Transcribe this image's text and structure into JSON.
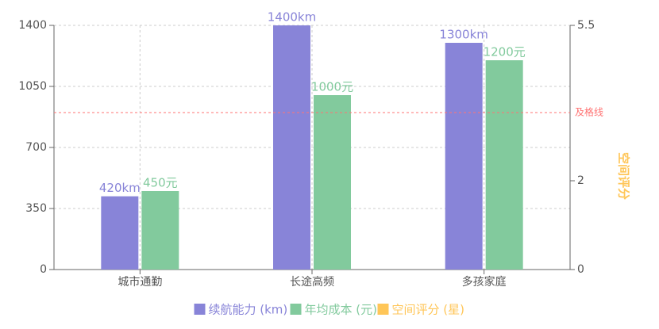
{
  "chart_data": {
    "type": "bar",
    "categories": [
      "城市通勤",
      "长途高频",
      "多孩家庭"
    ],
    "series": [
      {
        "name": "续航能力 (km)",
        "color": "#8884d8",
        "values": [
          420,
          1400,
          1300
        ],
        "value_labels": [
          "420km",
          "1400km",
          "1300km"
        ]
      },
      {
        "name": "年均成本 (元)",
        "color": "#82ca9d",
        "values": [
          450,
          1000,
          1200
        ],
        "value_labels": [
          "450元",
          "1000元",
          "1200元"
        ]
      },
      {
        "name": "空间评分 (星)",
        "color": "#ffc658",
        "axis": "y2",
        "values": [
          null,
          null,
          null
        ]
      }
    ],
    "ylim": [
      0,
      1400
    ],
    "yticks": [
      0,
      350,
      700,
      1050,
      1400
    ],
    "y2lim": [
      0,
      5.5
    ],
    "y2ticks": [
      0,
      2,
      5.5
    ],
    "y2label": "空间评分",
    "reference_line": {
      "value": 900,
      "label": "及格线",
      "color": "#ff7373"
    },
    "grid": true,
    "legend": "bottom"
  }
}
